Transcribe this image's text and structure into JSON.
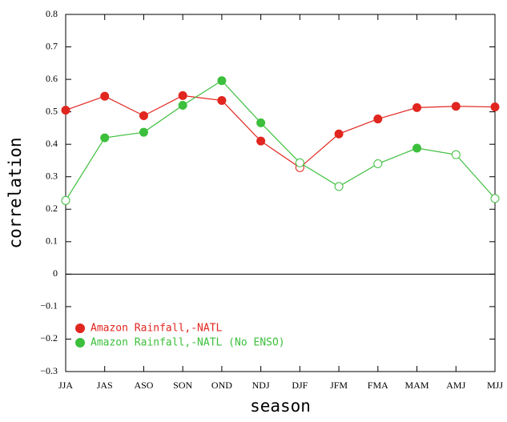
{
  "chart_data": {
    "type": "line",
    "x_label": "season",
    "y_label": "correlation",
    "categories": [
      "JJA",
      "JAS",
      "ASO",
      "SON",
      "OND",
      "NDJ",
      "DJF",
      "JFM",
      "FMA",
      "MAM",
      "AMJ",
      "MJJ"
    ],
    "series": [
      {
        "name": "Amazon Rainfall,-NATL",
        "color": "#e0261f",
        "values": [
          0.505,
          0.548,
          0.488,
          0.55,
          0.535,
          0.41,
          0.328,
          0.432,
          0.478,
          0.513,
          0.517,
          0.515
        ],
        "filled": [
          true,
          true,
          true,
          true,
          true,
          true,
          false,
          true,
          true,
          true,
          true,
          true
        ]
      },
      {
        "name": "Amazon Rainfall,-NATL (No ENSO)",
        "color": "#3cbf3c",
        "values": [
          0.227,
          0.42,
          0.437,
          0.52,
          0.596,
          0.466,
          0.343,
          0.27,
          0.34,
          0.388,
          0.368,
          0.233
        ],
        "filled": [
          false,
          true,
          true,
          true,
          true,
          true,
          false,
          false,
          false,
          true,
          false,
          false
        ]
      }
    ],
    "ylim": [
      -0.3,
      0.8
    ],
    "yticks": [
      {
        "value": -0.3,
        "label": "−0.3"
      },
      {
        "value": -0.2,
        "label": "−0.2"
      },
      {
        "value": -0.1,
        "label": "−0.1"
      },
      0,
      0.1,
      0.2,
      0.3,
      0.4,
      0.5,
      0.6,
      0.7,
      0.8
    ],
    "zero_line": true,
    "legend": "lower left"
  }
}
